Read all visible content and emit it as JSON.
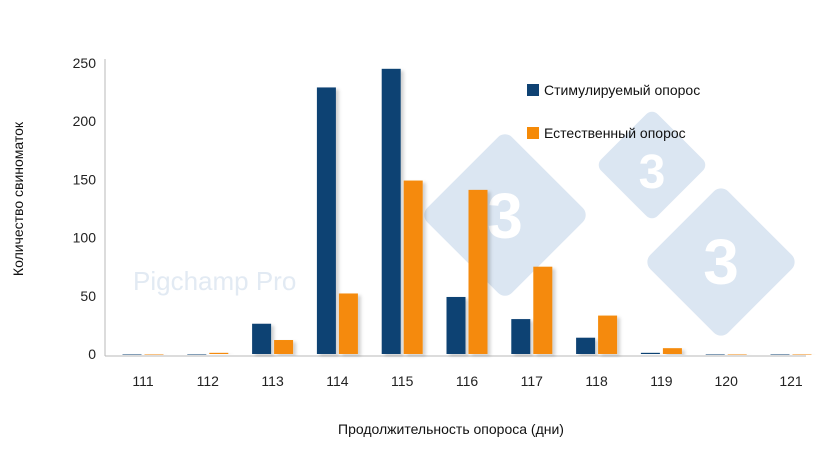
{
  "chart_data": {
    "type": "bar",
    "categories": [
      "111",
      "112",
      "113",
      "114",
      "115",
      "116",
      "117",
      "118",
      "119",
      "120",
      "121"
    ],
    "series": [
      {
        "name": "Стимулируемый опорос",
        "color": "#0f4273",
        "values": [
          0,
          0,
          26,
          229,
          245,
          49,
          30,
          14,
          1,
          0,
          0
        ]
      },
      {
        "name": "Естественный опорос",
        "color": "#f58a07",
        "values": [
          0,
          1,
          12,
          52,
          149,
          141,
          75,
          33,
          5,
          0,
          0
        ]
      }
    ],
    "xlabel": "Продолжительность опороса (дни)",
    "ylabel": "Количество свиноматок",
    "ylim": [
      0,
      250
    ],
    "yticks": [
      0,
      50,
      100,
      150,
      200,
      250
    ],
    "grid": false,
    "legend_position": "top-right"
  },
  "watermark": {
    "text": "Pigchamp Pro",
    "logo_digit": "3",
    "logo_color": "#dbe6f2"
  }
}
